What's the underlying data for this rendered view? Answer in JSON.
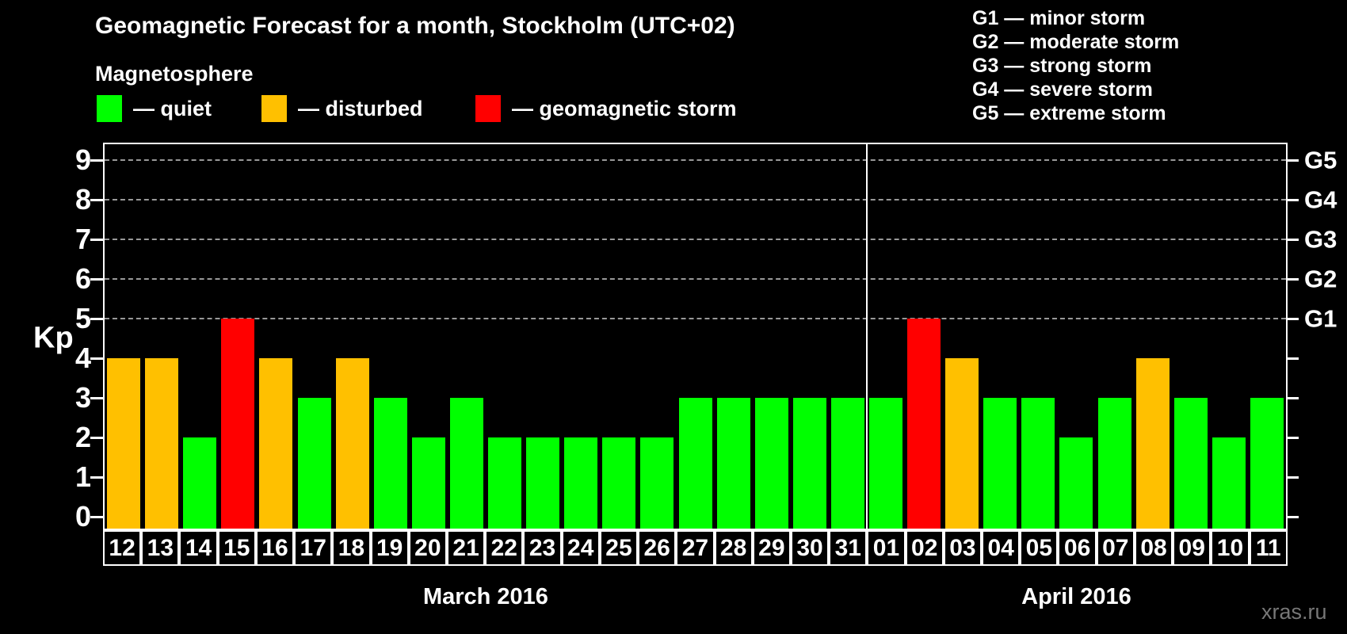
{
  "title": "Geomagnetic Forecast for a month, Stockholm (UTC+02)",
  "subtitle": "Magnetosphere",
  "magnetosphere_legend": [
    {
      "label": "— quiet",
      "state": "quiet",
      "color": "#00ff00"
    },
    {
      "label": "— disturbed",
      "state": "disturbed",
      "color": "#ffc000"
    },
    {
      "label": "— geomagnetic storm",
      "state": "storm",
      "color": "#ff0000"
    }
  ],
  "storm_scale_legend": [
    "G1 — minor storm",
    "G2 — moderate storm",
    "G3 — strong storm",
    "G4 — severe storm",
    "G5 — extreme storm"
  ],
  "watermark": "xras.ru",
  "chart_data": {
    "type": "bar",
    "title": "Geomagnetic Forecast for a month, Stockholm (UTC+02)",
    "ylabel": "Kp",
    "ylim": [
      0,
      9.4
    ],
    "y_ticks": [
      "0",
      "1",
      "2",
      "3",
      "4",
      "5",
      "6",
      "7",
      "8",
      "9"
    ],
    "gridlines_at_kp": [
      5,
      6,
      7,
      8,
      9
    ],
    "right_axis_labels": [
      {
        "text": "G1",
        "kp": 5
      },
      {
        "text": "G2",
        "kp": 6
      },
      {
        "text": "G3",
        "kp": 7
      },
      {
        "text": "G4",
        "kp": 8
      },
      {
        "text": "G5",
        "kp": 9
      }
    ],
    "state_colors": {
      "quiet": "#00ff00",
      "disturbed": "#ffc000",
      "storm": "#ff0000"
    },
    "legend_position": "top-left",
    "grid": "dashed horizontal at G1–G5 levels only",
    "months": [
      {
        "label": "March 2016",
        "days": [
          {
            "day": "12",
            "kp": 4,
            "state": "disturbed"
          },
          {
            "day": "13",
            "kp": 4,
            "state": "disturbed"
          },
          {
            "day": "14",
            "kp": 2,
            "state": "quiet"
          },
          {
            "day": "15",
            "kp": 5,
            "state": "storm"
          },
          {
            "day": "16",
            "kp": 4,
            "state": "disturbed"
          },
          {
            "day": "17",
            "kp": 3,
            "state": "quiet"
          },
          {
            "day": "18",
            "kp": 4,
            "state": "disturbed"
          },
          {
            "day": "19",
            "kp": 3,
            "state": "quiet"
          },
          {
            "day": "20",
            "kp": 2,
            "state": "quiet"
          },
          {
            "day": "21",
            "kp": 3,
            "state": "quiet"
          },
          {
            "day": "22",
            "kp": 2,
            "state": "quiet"
          },
          {
            "day": "23",
            "kp": 2,
            "state": "quiet"
          },
          {
            "day": "24",
            "kp": 2,
            "state": "quiet"
          },
          {
            "day": "25",
            "kp": 2,
            "state": "quiet"
          },
          {
            "day": "26",
            "kp": 2,
            "state": "quiet"
          },
          {
            "day": "27",
            "kp": 3,
            "state": "quiet"
          },
          {
            "day": "28",
            "kp": 3,
            "state": "quiet"
          },
          {
            "day": "29",
            "kp": 3,
            "state": "quiet"
          },
          {
            "day": "30",
            "kp": 3,
            "state": "quiet"
          },
          {
            "day": "31",
            "kp": 3,
            "state": "quiet"
          }
        ]
      },
      {
        "label": "April 2016",
        "days": [
          {
            "day": "01",
            "kp": 3,
            "state": "quiet"
          },
          {
            "day": "02",
            "kp": 5,
            "state": "storm"
          },
          {
            "day": "03",
            "kp": 4,
            "state": "disturbed"
          },
          {
            "day": "04",
            "kp": 3,
            "state": "quiet"
          },
          {
            "day": "05",
            "kp": 3,
            "state": "quiet"
          },
          {
            "day": "06",
            "kp": 2,
            "state": "quiet"
          },
          {
            "day": "07",
            "kp": 3,
            "state": "quiet"
          },
          {
            "day": "08",
            "kp": 4,
            "state": "disturbed"
          },
          {
            "day": "09",
            "kp": 3,
            "state": "quiet"
          },
          {
            "day": "10",
            "kp": 2,
            "state": "quiet"
          },
          {
            "day": "11",
            "kp": 3,
            "state": "quiet"
          }
        ]
      }
    ]
  }
}
